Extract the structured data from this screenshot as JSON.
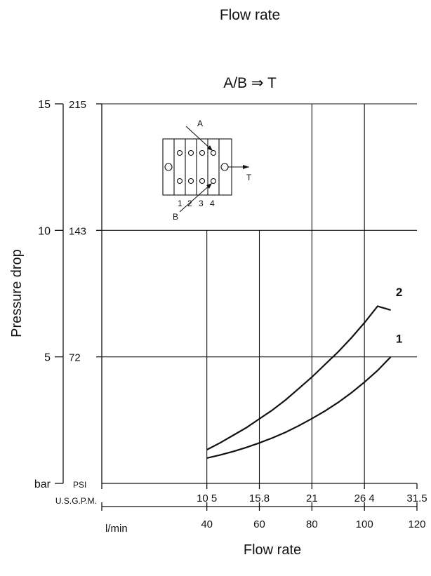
{
  "header": {
    "top_title": "Flow rate"
  },
  "chart_data": {
    "type": "line",
    "title": "A/B ⇒ T",
    "xlabel": "Flow rate",
    "ylabel": "Pressure drop",
    "xlim": [
      0,
      120
    ],
    "ylim": [
      0,
      15
    ],
    "x_unit_label": "l/min",
    "x_alt_unit_label": "U.S.G.P.M.",
    "y_unit_label": "bar",
    "y_alt_unit_label": "PSI",
    "x_ticks": [
      {
        "lmin": "40",
        "gpm": "10 5",
        "x": 40
      },
      {
        "lmin": "60",
        "gpm": "15.8",
        "x": 60
      },
      {
        "lmin": "80",
        "gpm": "21",
        "x": 80
      },
      {
        "lmin": "100",
        "gpm": "26 4",
        "x": 100
      },
      {
        "lmin": "120",
        "gpm": "31.5",
        "x": 120
      }
    ],
    "y_ticks": [
      {
        "bar": "5",
        "psi": "72",
        "y": 5
      },
      {
        "bar": "10",
        "psi": "143",
        "y": 10
      },
      {
        "bar": "15",
        "psi": "215",
        "y": 15
      }
    ],
    "grid": true,
    "series": [
      {
        "name": "1",
        "x": [
          40,
          45,
          50,
          55,
          60,
          65,
          70,
          75,
          80,
          85,
          90,
          95,
          100,
          105,
          110
        ],
        "y": [
          1.0,
          1.12,
          1.26,
          1.42,
          1.6,
          1.8,
          2.02,
          2.28,
          2.56,
          2.86,
          3.2,
          3.58,
          4.0,
          4.46,
          5.0
        ]
      },
      {
        "name": "2",
        "x": [
          40,
          45,
          50,
          55,
          60,
          65,
          70,
          75,
          80,
          85,
          90,
          95,
          100,
          105,
          110
        ],
        "y": [
          1.33,
          1.6,
          1.9,
          2.2,
          2.55,
          2.9,
          3.3,
          3.75,
          4.2,
          4.7,
          5.2,
          5.75,
          6.35,
          7.0,
          6.85
        ]
      }
    ],
    "annotations": [
      "A",
      "B",
      "T",
      "1",
      "2",
      "3",
      "4"
    ]
  }
}
